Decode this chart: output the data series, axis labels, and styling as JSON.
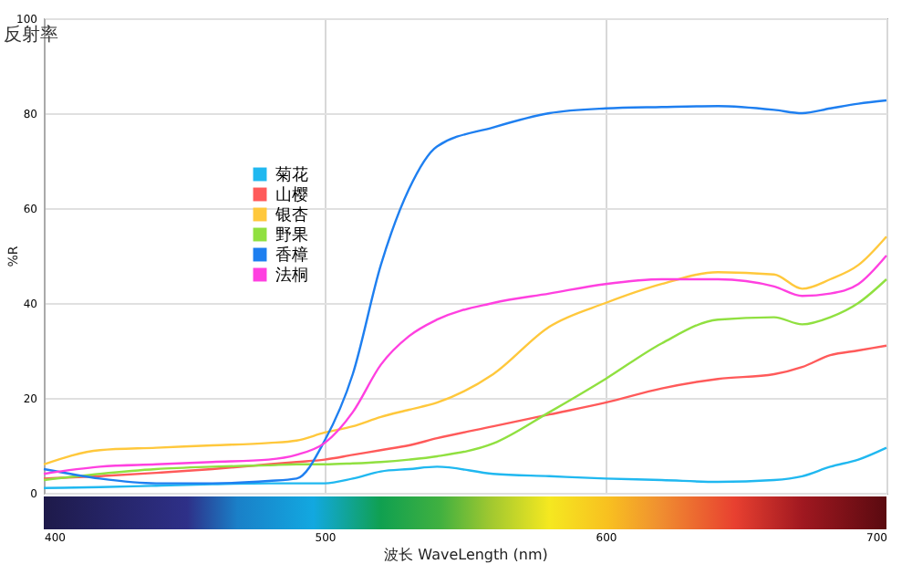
{
  "chart_data": {
    "type": "line",
    "xlabel": "波长  WaveLength (nm)",
    "ylabel": "%R",
    "annotations": [
      "反射率"
    ],
    "x": [
      400,
      420,
      440,
      460,
      480,
      490,
      500,
      510,
      520,
      530,
      540,
      560,
      580,
      600,
      620,
      640,
      660,
      670,
      680,
      690,
      700
    ],
    "xlim": [
      400,
      700
    ],
    "xticks": [
      400,
      500,
      600,
      700
    ],
    "ylim": [
      0,
      100
    ],
    "yticks": [
      0,
      20,
      40,
      60,
      80,
      100
    ],
    "grid": true,
    "legend": "left",
    "marker": "none",
    "line_style": "solid",
    "series": [
      {
        "name": "菊花",
        "color": "#20b8f0",
        "values": [
          1,
          1.2,
          1.5,
          1.8,
          2,
          2,
          2,
          3,
          4.5,
          5,
          5.5,
          4,
          3.5,
          3,
          2.7,
          2.3,
          2.7,
          3.5,
          5.5,
          7,
          9.5
        ]
      },
      {
        "name": "山樱",
        "color": "#ff5a5a",
        "values": [
          3,
          3.5,
          4.2,
          5,
          6,
          6.5,
          7,
          8,
          9,
          10,
          11.5,
          14,
          16.5,
          19,
          22,
          24,
          25,
          26.5,
          29,
          30,
          31
        ]
      },
      {
        "name": "银杏",
        "color": "#ffc83c",
        "values": [
          6,
          9,
          9.5,
          10,
          10.5,
          11,
          12.7,
          14,
          16,
          17.5,
          19,
          25,
          35,
          40,
          44,
          46.5,
          46,
          43,
          45,
          48,
          54
        ]
      },
      {
        "name": "野果",
        "color": "#90e040",
        "values": [
          2.7,
          4,
          5,
          5.5,
          5.8,
          6,
          6,
          6.2,
          6.5,
          7,
          7.7,
          10.4,
          17,
          24,
          31.5,
          36.5,
          37,
          35.5,
          37,
          40,
          45
        ]
      },
      {
        "name": "香樟",
        "color": "#1e7ff0",
        "values": [
          5,
          3,
          2,
          2,
          2.5,
          3,
          11,
          25,
          48,
          64,
          73,
          77,
          80,
          81,
          81.3,
          81.5,
          80.7,
          80,
          81,
          82,
          82.7
        ]
      },
      {
        "name": "法桐",
        "color": "#ff40e0",
        "values": [
          4,
          5.5,
          6,
          6.5,
          7,
          8,
          10.5,
          17,
          27,
          33,
          36.5,
          40,
          42,
          44,
          45,
          45,
          43.5,
          41.5,
          42,
          44,
          50
        ]
      }
    ]
  }
}
